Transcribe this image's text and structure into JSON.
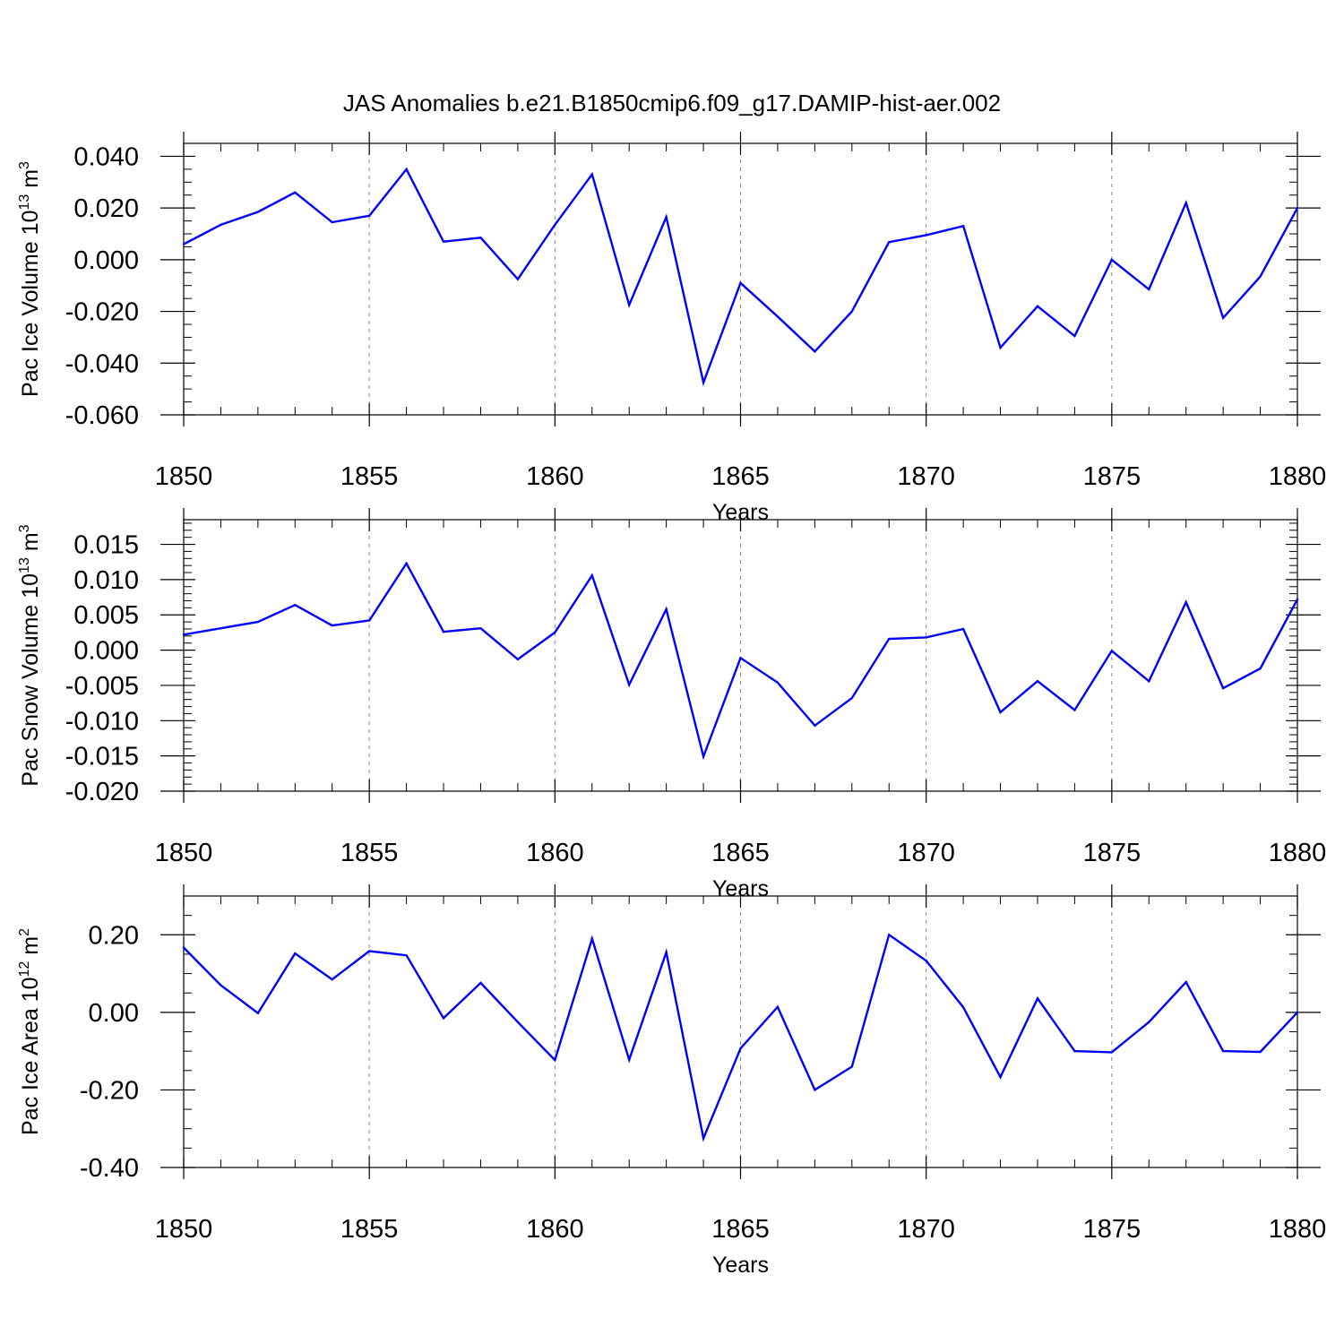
{
  "figure": {
    "title": "JAS Anomalies b.e21.B1850cmip6.f09_g17.DAMIP-hist-aer.002"
  },
  "chart_data": [
    {
      "type": "line",
      "ylabel": "Pac Ice Volume 10",
      "ylabel_exponent": "13",
      "ylabel_unit": " m",
      "ylabel_unit_exponent": "3",
      "xlabel": "Years",
      "xlim": [
        1850,
        1880
      ],
      "ylim": [
        -0.06,
        0.045
      ],
      "x_ticks": [
        1850,
        1855,
        1860,
        1865,
        1870,
        1875,
        1880
      ],
      "x_tick_labels": [
        "1850",
        "1855",
        "1860",
        "1865",
        "1870",
        "1875",
        "1880"
      ],
      "y_ticks": [
        -0.06,
        -0.04,
        -0.02,
        0.0,
        0.02,
        0.04
      ],
      "y_tick_labels": [
        "-0.060",
        "-0.040",
        "-0.020",
        "0.000",
        "0.020",
        "0.040"
      ],
      "y_minor_step": 0.005,
      "grid": "vertical dashed at major x ticks",
      "series": [
        {
          "color": "#0000ff",
          "x": [
            1850,
            1851,
            1852,
            1853,
            1854,
            1855,
            1856,
            1857,
            1858,
            1859,
            1860,
            1861,
            1862,
            1863,
            1864,
            1865,
            1866,
            1867,
            1868,
            1869,
            1870,
            1871,
            1872,
            1873,
            1874,
            1875,
            1876,
            1877,
            1878,
            1879,
            1880
          ],
          "values": [
            0.006,
            0.0135,
            0.0185,
            0.026,
            0.0145,
            0.017,
            0.035,
            0.007,
            0.0085,
            -0.0075,
            0.0135,
            0.033,
            -0.0175,
            0.0165,
            -0.0475,
            -0.009,
            -0.022,
            -0.0355,
            -0.02,
            0.0068,
            0.0095,
            0.013,
            -0.034,
            -0.018,
            -0.0295,
            0.0,
            -0.0115,
            0.022,
            -0.0225,
            -0.0065,
            0.02
          ]
        }
      ]
    },
    {
      "type": "line",
      "ylabel": "Pac Snow Volume 10",
      "ylabel_exponent": "13",
      "ylabel_unit": " m",
      "ylabel_unit_exponent": "3",
      "xlabel": "Years",
      "xlim": [
        1850,
        1880
      ],
      "ylim": [
        -0.02,
        0.0185
      ],
      "x_ticks": [
        1850,
        1855,
        1860,
        1865,
        1870,
        1875,
        1880
      ],
      "x_tick_labels": [
        "1850",
        "1855",
        "1860",
        "1865",
        "1870",
        "1875",
        "1880"
      ],
      "y_ticks": [
        -0.02,
        -0.015,
        -0.01,
        -0.005,
        0.0,
        0.005,
        0.01,
        0.015
      ],
      "y_tick_labels": [
        "-0.020",
        "-0.015",
        "-0.010",
        "-0.005",
        "0.000",
        "0.005",
        "0.010",
        "0.015"
      ],
      "y_minor_step": 0.001,
      "grid": "vertical dashed at major x ticks",
      "series": [
        {
          "color": "#0000ff",
          "x": [
            1850,
            1851,
            1852,
            1853,
            1854,
            1855,
            1856,
            1857,
            1858,
            1859,
            1860,
            1861,
            1862,
            1863,
            1864,
            1865,
            1866,
            1867,
            1868,
            1869,
            1870,
            1871,
            1872,
            1873,
            1874,
            1875,
            1876,
            1877,
            1878,
            1879,
            1880
          ],
          "values": [
            0.0022,
            0.0031,
            0.004,
            0.0064,
            0.0035,
            0.0042,
            0.0123,
            0.0026,
            0.0031,
            -0.0013,
            0.0025,
            0.0106,
            -0.0049,
            0.0058,
            -0.0151,
            -0.0011,
            -0.0046,
            -0.0107,
            -0.0068,
            0.0016,
            0.0018,
            0.003,
            -0.0088,
            -0.0044,
            -0.0085,
            -0.0001,
            -0.0044,
            0.0068,
            -0.0054,
            -0.0026,
            0.0072
          ]
        }
      ]
    },
    {
      "type": "line",
      "ylabel": "Pac Ice Area 10",
      "ylabel_exponent": "12",
      "ylabel_unit": " m",
      "ylabel_unit_exponent": "2",
      "xlabel": "Years",
      "xlim": [
        1850,
        1880
      ],
      "ylim": [
        -0.4,
        0.3
      ],
      "x_ticks": [
        1850,
        1855,
        1860,
        1865,
        1870,
        1875,
        1880
      ],
      "x_tick_labels": [
        "1850",
        "1855",
        "1860",
        "1865",
        "1870",
        "1875",
        "1880"
      ],
      "y_ticks": [
        -0.4,
        -0.2,
        0.0,
        0.2
      ],
      "y_tick_labels": [
        "-0.40",
        "-0.20",
        "0.00",
        "0.20"
      ],
      "y_minor_step": 0.05,
      "grid": "vertical dashed at major x ticks",
      "series": [
        {
          "color": "#0000ff",
          "x": [
            1850,
            1851,
            1852,
            1853,
            1854,
            1855,
            1856,
            1857,
            1858,
            1859,
            1860,
            1861,
            1862,
            1863,
            1864,
            1865,
            1866,
            1867,
            1868,
            1869,
            1870,
            1871,
            1872,
            1873,
            1874,
            1875,
            1876,
            1877,
            1878,
            1879,
            1880
          ],
          "values": [
            0.167,
            0.07,
            -0.002,
            0.152,
            0.085,
            0.158,
            0.147,
            -0.015,
            0.076,
            -0.025,
            -0.123,
            0.19,
            -0.122,
            0.155,
            -0.325,
            -0.093,
            0.014,
            -0.2,
            -0.14,
            0.2,
            0.133,
            0.013,
            -0.167,
            0.036,
            -0.1,
            -0.103,
            -0.025,
            0.078,
            -0.1,
            -0.102,
            0.0
          ]
        }
      ]
    }
  ]
}
